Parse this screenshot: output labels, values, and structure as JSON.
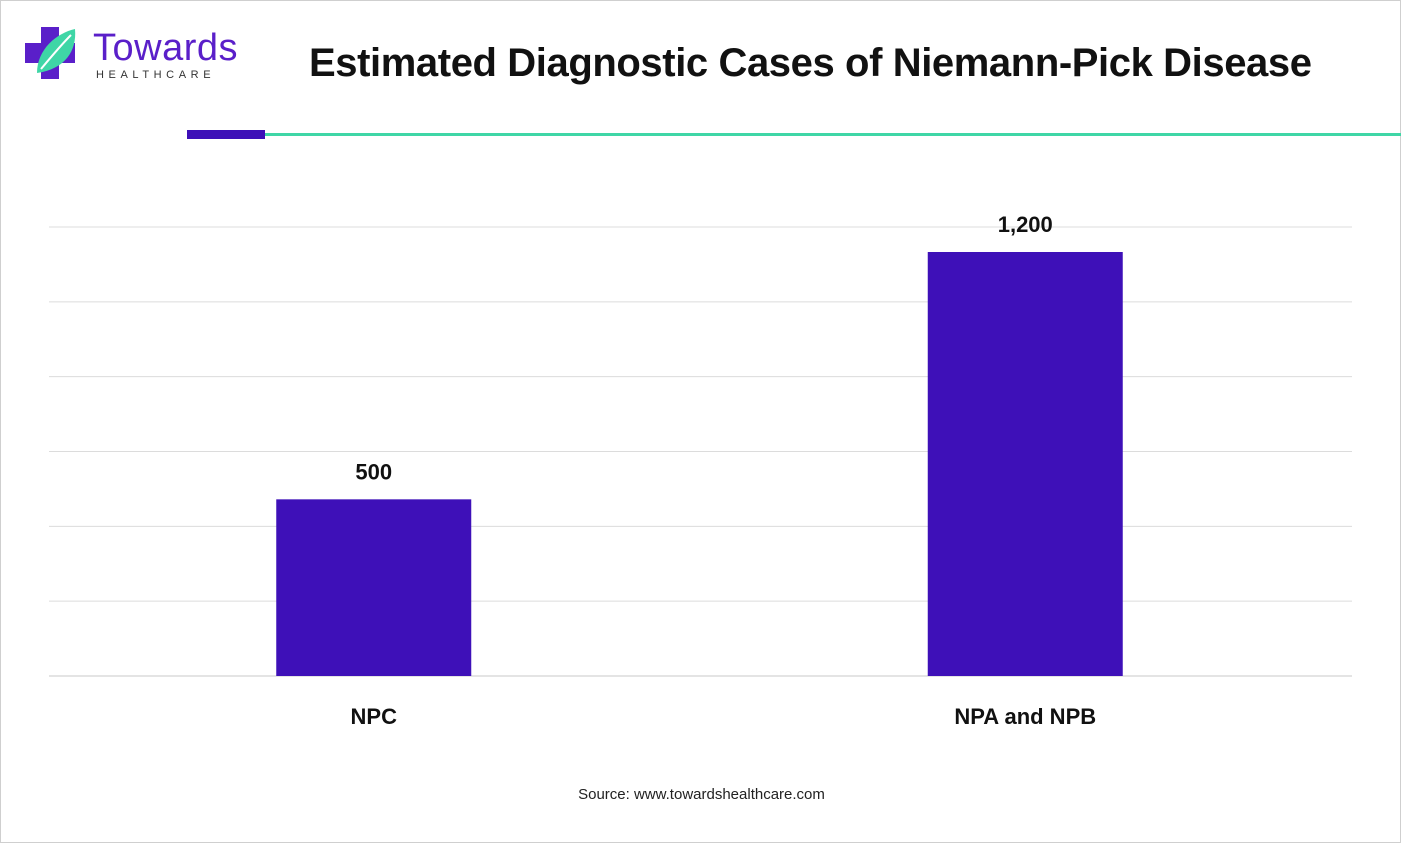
{
  "brand": {
    "name": "Towards",
    "tagline": "HEALTHCARE",
    "colors": {
      "primary": "#5a1fc9",
      "secondary": "#3fd6a6"
    },
    "icon": "medical-cross-leaf-icon"
  },
  "chart_data": {
    "type": "bar",
    "title": "Estimated Diagnostic Cases of Niemann-Pick Disease",
    "categories": [
      "NPC",
      "NPA and NPB"
    ],
    "values": [
      500,
      1200
    ],
    "data_labels": [
      "500",
      "1,200"
    ],
    "xlabel": "",
    "ylabel": "",
    "ylim": [
      0,
      1200
    ],
    "grid": true,
    "bar_color": "#3e10b8"
  },
  "source": "Source: www.towardshealthcare.com"
}
